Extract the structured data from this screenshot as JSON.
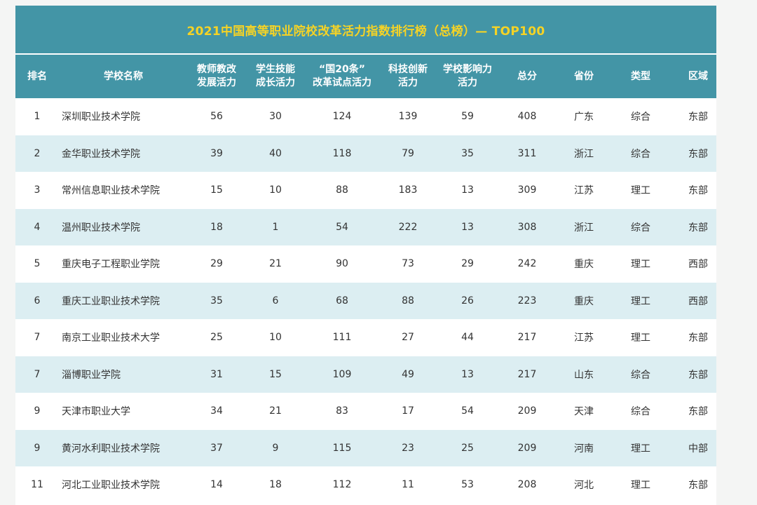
{
  "title": "2021中国高等职业院校改革活力指数排行榜（总榜）— TOP100",
  "columns": [
    "排名",
    "学校名称",
    "教师教改\n发展活力",
    "学生技能\n成长活力",
    "“国20条”\n改革试点活力",
    "科技创新\n活力",
    "学校影响力\n活力",
    "总分",
    "省份",
    "类型",
    "区域"
  ],
  "rows": [
    [
      "1",
      "深圳职业技术学院",
      "56",
      "30",
      "124",
      "139",
      "59",
      "408",
      "广东",
      "综合",
      "东部"
    ],
    [
      "2",
      "金华职业技术学院",
      "39",
      "40",
      "118",
      "79",
      "35",
      "311",
      "浙江",
      "综合",
      "东部"
    ],
    [
      "3",
      "常州信息职业技术学院",
      "15",
      "10",
      "88",
      "183",
      "13",
      "309",
      "江苏",
      "理工",
      "东部"
    ],
    [
      "4",
      "温州职业技术学院",
      "18",
      "1",
      "54",
      "222",
      "13",
      "308",
      "浙江",
      "综合",
      "东部"
    ],
    [
      "5",
      "重庆电子工程职业学院",
      "29",
      "21",
      "90",
      "73",
      "29",
      "242",
      "重庆",
      "理工",
      "西部"
    ],
    [
      "6",
      "重庆工业职业技术学院",
      "35",
      "6",
      "68",
      "88",
      "26",
      "223",
      "重庆",
      "理工",
      "西部"
    ],
    [
      "7",
      "南京工业职业技术大学",
      "25",
      "10",
      "111",
      "27",
      "44",
      "217",
      "江苏",
      "理工",
      "东部"
    ],
    [
      "7",
      "淄博职业学院",
      "31",
      "15",
      "109",
      "49",
      "13",
      "217",
      "山东",
      "综合",
      "东部"
    ],
    [
      "9",
      "天津市职业大学",
      "34",
      "21",
      "83",
      "17",
      "54",
      "209",
      "天津",
      "综合",
      "东部"
    ],
    [
      "9",
      "黄河水利职业技术学院",
      "37",
      "9",
      "115",
      "23",
      "25",
      "209",
      "河南",
      "理工",
      "中部"
    ],
    [
      "11",
      "河北工业职业技术学院",
      "14",
      "18",
      "112",
      "11",
      "53",
      "208",
      "河北",
      "理工",
      "东部"
    ]
  ],
  "colors": {
    "header_bg": "#4395a6",
    "title_text": "#f6d325",
    "row_stripe": "#dceef2"
  }
}
